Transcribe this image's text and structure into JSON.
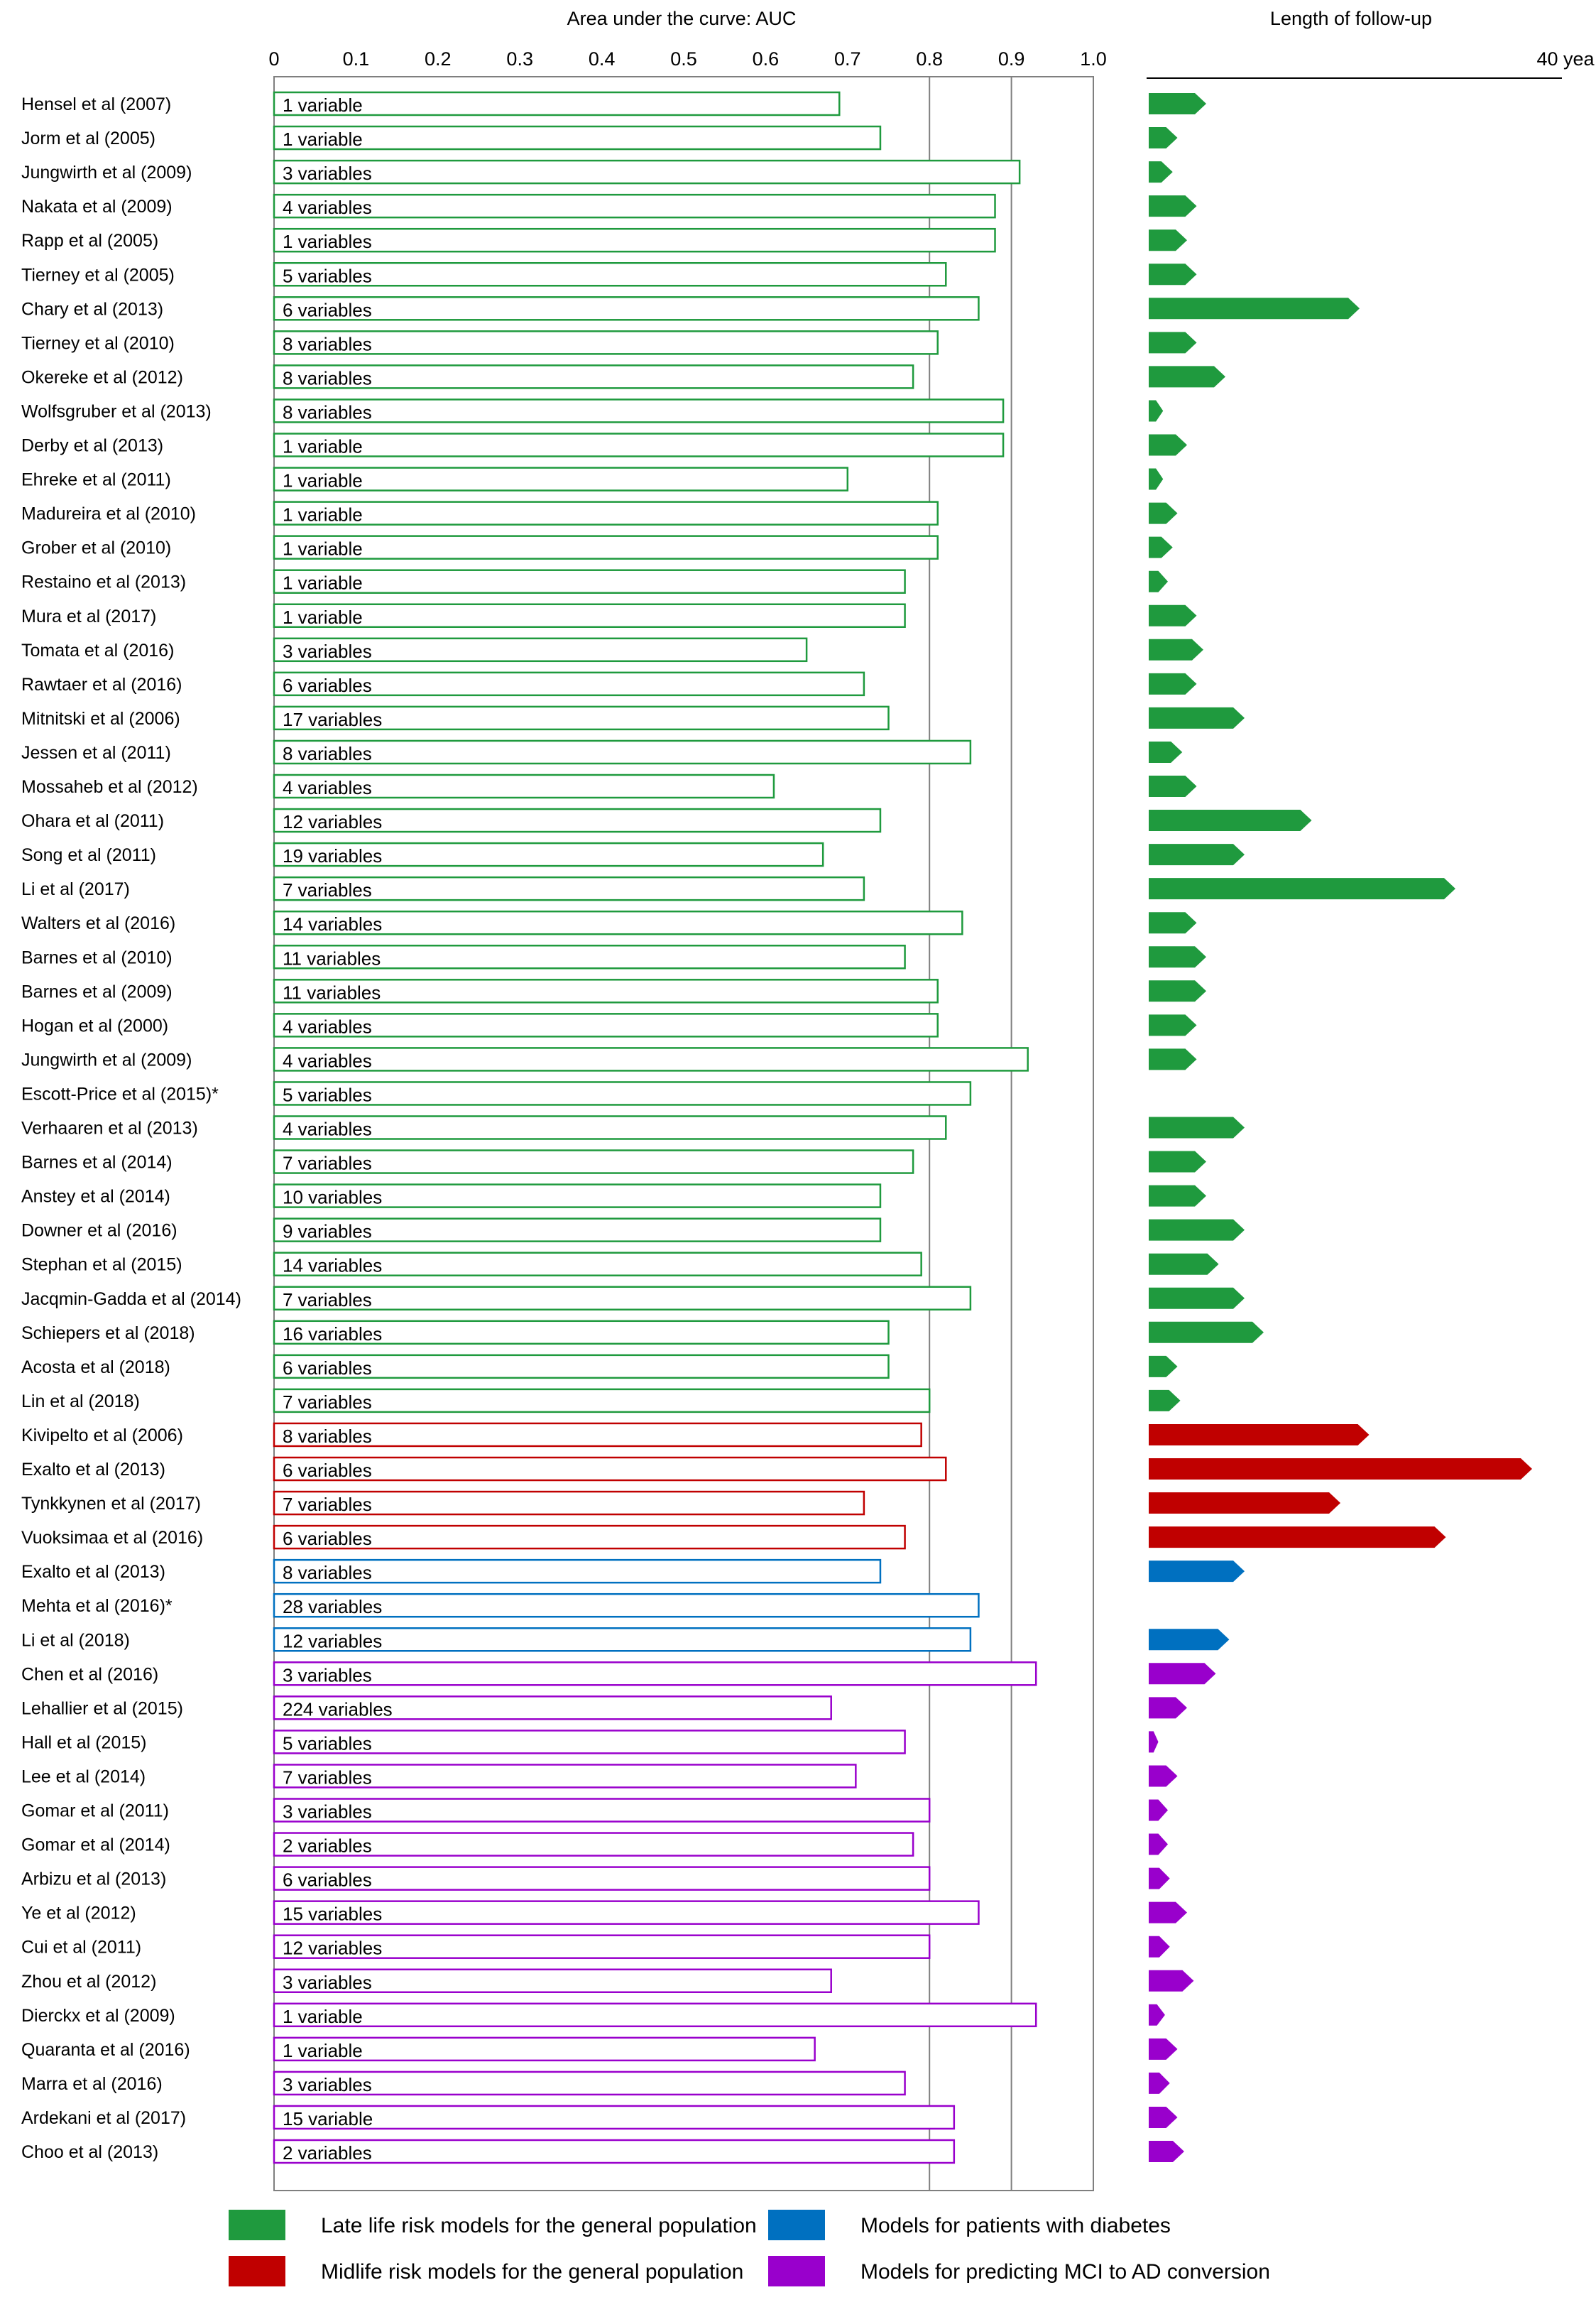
{
  "chart_data": {
    "type": "bar",
    "auc_axis": {
      "title": "Area under the curve: AUC",
      "min": 0,
      "max": 1.0,
      "ticks": [
        0,
        0.1,
        0.2,
        0.3,
        0.4,
        0.5,
        0.6,
        0.7,
        0.8,
        0.9,
        1.0
      ],
      "tick_labels": [
        "0",
        "0.1",
        "0.2",
        "0.3",
        "0.4",
        "0.5",
        "0.6",
        "0.7",
        "0.8",
        "0.9",
        "1.0"
      ],
      "gridlines_at": [
        0.8,
        0.9,
        1.0
      ]
    },
    "followup_axis": {
      "title": "Length of follow-up",
      "min": 0,
      "max": 40,
      "end_label": "40 yea"
    },
    "legend": [
      {
        "key": "late",
        "label": "Late life risk models for the general population",
        "color": "#1f9a3e"
      },
      {
        "key": "diabetes",
        "label": "Models for patients with diabetes",
        "color": "#0070c0"
      },
      {
        "key": "mid",
        "label": "Midlife risk models for the general population",
        "color": "#c00000"
      },
      {
        "key": "mci",
        "label": "Models for predicting MCI to AD conversion",
        "color": "#9900cc"
      }
    ],
    "studies": [
      {
        "study": "Hensel et al (2007)",
        "variables": "1 variable",
        "auc": 0.69,
        "followup": 6,
        "group": "late"
      },
      {
        "study": "Jorm et al (2005)",
        "variables": "1 variable",
        "auc": 0.74,
        "followup": 3,
        "group": "late"
      },
      {
        "study": "Jungwirth et al (2009)",
        "variables": "3 variables",
        "auc": 0.91,
        "followup": 2.5,
        "group": "late"
      },
      {
        "study": "Nakata et al (2009)",
        "variables": "4 variables",
        "auc": 0.88,
        "followup": 5,
        "group": "late"
      },
      {
        "study": "Rapp et al (2005)",
        "variables": "1 variables",
        "auc": 0.88,
        "followup": 4,
        "group": "late"
      },
      {
        "study": "Tierney et al (2005)",
        "variables": "5 variables",
        "auc": 0.82,
        "followup": 5,
        "group": "late"
      },
      {
        "study": "Chary et al (2013)",
        "variables": "6 variables",
        "auc": 0.86,
        "followup": 22,
        "group": "late"
      },
      {
        "study": "Tierney et al  (2010)",
        "variables": "8 variables",
        "auc": 0.81,
        "followup": 5,
        "group": "late"
      },
      {
        "study": "Okereke et al (2012)",
        "variables": "8 variables",
        "auc": 0.78,
        "followup": 8,
        "group": "late"
      },
      {
        "study": "Wolfsgruber et al (2013)",
        "variables": "8 variables",
        "auc": 0.89,
        "followup": 1.5,
        "group": "late"
      },
      {
        "study": "Derby et al (2013)",
        "variables": "1 variable",
        "auc": 0.89,
        "followup": 4,
        "group": "late"
      },
      {
        "study": "Ehreke et al (2011)",
        "variables": "1 variable",
        "auc": 0.7,
        "followup": 1.5,
        "group": "late"
      },
      {
        "study": "Madureira et al (2010)",
        "variables": "1 variable",
        "auc": 0.81,
        "followup": 3,
        "group": "late"
      },
      {
        "study": "Grober et al (2010)",
        "variables": "1 variable",
        "auc": 0.81,
        "followup": 2.5,
        "group": "late"
      },
      {
        "study": "Restaino et al (2013)",
        "variables": "1 variable",
        "auc": 0.77,
        "followup": 2,
        "group": "late"
      },
      {
        "study": "Mura et al (2017)",
        "variables": "1 variable",
        "auc": 0.77,
        "followup": 5,
        "group": "late"
      },
      {
        "study": "Tomata et al (2016)",
        "variables": "3 variables",
        "auc": 0.65,
        "followup": 5.7,
        "group": "late"
      },
      {
        "study": "Rawtaer et al (2016)",
        "variables": "6 variables",
        "auc": 0.72,
        "followup": 5,
        "group": "late"
      },
      {
        "study": "Mitnitski et al (2006)",
        "variables": "17 variables",
        "auc": 0.75,
        "followup": 10,
        "group": "late"
      },
      {
        "study": "Jessen et al (2011)",
        "variables": "8 variables",
        "auc": 0.85,
        "followup": 3.5,
        "group": "late"
      },
      {
        "study": "Mossaheb et al (2012)",
        "variables": "4 variables",
        "auc": 0.61,
        "followup": 5,
        "group": "late"
      },
      {
        "study": "Ohara et al (2011)",
        "variables": "12 variables",
        "auc": 0.74,
        "followup": 17,
        "group": "late"
      },
      {
        "study": "Song et al (2011)",
        "variables": "19 variables",
        "auc": 0.67,
        "followup": 10,
        "group": "late"
      },
      {
        "study": "Li et al (2017)",
        "variables": "7 variables",
        "auc": 0.72,
        "followup": 32,
        "group": "late"
      },
      {
        "study": "Walters et al (2016)",
        "variables": "14 variables",
        "auc": 0.84,
        "followup": 5,
        "group": "late"
      },
      {
        "study": "Barnes et al (2010)",
        "variables": "11 variables",
        "auc": 0.77,
        "followup": 6,
        "group": "late"
      },
      {
        "study": "Barnes et al (2009)",
        "variables": "11 variables",
        "auc": 0.81,
        "followup": 6,
        "group": "late"
      },
      {
        "study": "Hogan et al (2000)",
        "variables": "4 variables",
        "auc": 0.81,
        "followup": 5,
        "group": "late"
      },
      {
        "study": "Jungwirth et al (2009)",
        "variables": "4 variables",
        "auc": 0.92,
        "followup": 5,
        "group": "late"
      },
      {
        "study": "Escott-Price et al (2015)*",
        "variables": "5 variables",
        "auc": 0.85,
        "followup": null,
        "group": "late"
      },
      {
        "study": "Verhaaren et al (2013)",
        "variables": "4 variables",
        "auc": 0.82,
        "followup": 10,
        "group": "late"
      },
      {
        "study": "Barnes et al (2014)",
        "variables": "7 variables",
        "auc": 0.78,
        "followup": 6,
        "group": "late"
      },
      {
        "study": "Anstey et al (2014)",
        "variables": "10 variables",
        "auc": 0.74,
        "followup": 6,
        "group": "late"
      },
      {
        "study": "Downer et al (2016)",
        "variables": "9 variables",
        "auc": 0.74,
        "followup": 10,
        "group": "late"
      },
      {
        "study": "Stephan et al (2015)",
        "variables": "14 variables",
        "auc": 0.79,
        "followup": 7.3,
        "group": "late"
      },
      {
        "study": "Jacqmin-Gadda et al (2014)",
        "variables": "7 variables",
        "auc": 0.85,
        "followup": 10,
        "group": "late"
      },
      {
        "study": "Schiepers et al (2018)",
        "variables": "16 variables",
        "auc": 0.75,
        "followup": 12,
        "group": "late"
      },
      {
        "study": "Acosta et al (2018)",
        "variables": "6 variables",
        "auc": 0.75,
        "followup": 3,
        "group": "late"
      },
      {
        "study": "Lin et al (2018)",
        "variables": "7 variables",
        "auc": 0.8,
        "followup": 3.3,
        "group": "late"
      },
      {
        "study": "Kivipelto et al (2006)",
        "variables": "8 variables",
        "auc": 0.79,
        "followup": 23,
        "group": "mid"
      },
      {
        "study": "Exalto et al (2013)",
        "variables": "6 variables",
        "auc": 0.82,
        "followup": 40,
        "group": "mid"
      },
      {
        "study": "Tynkkynen et al (2017)",
        "variables": "7 variables",
        "auc": 0.72,
        "followup": 20,
        "group": "mid"
      },
      {
        "study": "Vuoksimaa et al (2016)",
        "variables": "6 variables",
        "auc": 0.77,
        "followup": 31,
        "group": "mid"
      },
      {
        "study": "Exalto et al (2013)",
        "variables": "8 variables",
        "auc": 0.74,
        "followup": 10,
        "group": "diabetes"
      },
      {
        "study": "Mehta et al (2016)*",
        "variables": "28 variables",
        "auc": 0.86,
        "followup": null,
        "group": "diabetes"
      },
      {
        "study": "Li et al (2018)",
        "variables": "12 variables",
        "auc": 0.85,
        "followup": 8.4,
        "group": "diabetes"
      },
      {
        "study": "Chen et al (2016)",
        "variables": "3 variables",
        "auc": 0.93,
        "followup": 7,
        "group": "mci"
      },
      {
        "study": "Lehallier et al (2015)",
        "variables": "224 variables",
        "auc": 0.68,
        "followup": 4,
        "group": "mci"
      },
      {
        "study": "Hall et al (2015)",
        "variables": "5 variables",
        "auc": 0.77,
        "followup": 1,
        "group": "mci"
      },
      {
        "study": "Lee et al (2014)",
        "variables": "7 variables",
        "auc": 0.71,
        "followup": 3,
        "group": "mci"
      },
      {
        "study": "Gomar et al (2011)",
        "variables": "3 variables",
        "auc": 0.8,
        "followup": 2,
        "group": "mci"
      },
      {
        "study": "Gomar et al (2014)",
        "variables": "2 variables",
        "auc": 0.78,
        "followup": 2,
        "group": "mci"
      },
      {
        "study": "Arbizu et al (2013)",
        "variables": "6 variables",
        "auc": 0.8,
        "followup": 2.2,
        "group": "mci"
      },
      {
        "study": "Ye et al (2012)",
        "variables": "15 variables",
        "auc": 0.86,
        "followup": 4,
        "group": "mci"
      },
      {
        "study": "Cui et al (2011)",
        "variables": "12 variables",
        "auc": 0.8,
        "followup": 2.2,
        "group": "mci"
      },
      {
        "study": "Zhou et al (2012)",
        "variables": "3 variables",
        "auc": 0.68,
        "followup": 4.7,
        "group": "mci"
      },
      {
        "study": "Dierckx et al (2009)",
        "variables": "1 variable",
        "auc": 0.93,
        "followup": 1.7,
        "group": "mci"
      },
      {
        "study": "Quaranta et al (2016)",
        "variables": "1 variable",
        "auc": 0.66,
        "followup": 3,
        "group": "mci"
      },
      {
        "study": "Marra et al (2016)",
        "variables": "3 variables",
        "auc": 0.77,
        "followup": 2.2,
        "group": "mci"
      },
      {
        "study": "Ardekani et al (2017)",
        "variables": "15 variable",
        "auc": 0.83,
        "followup": 3,
        "group": "mci"
      },
      {
        "study": "Choo et al (2013)",
        "variables": "2 variables",
        "auc": 0.83,
        "followup": 3.7,
        "group": "mci"
      }
    ]
  }
}
